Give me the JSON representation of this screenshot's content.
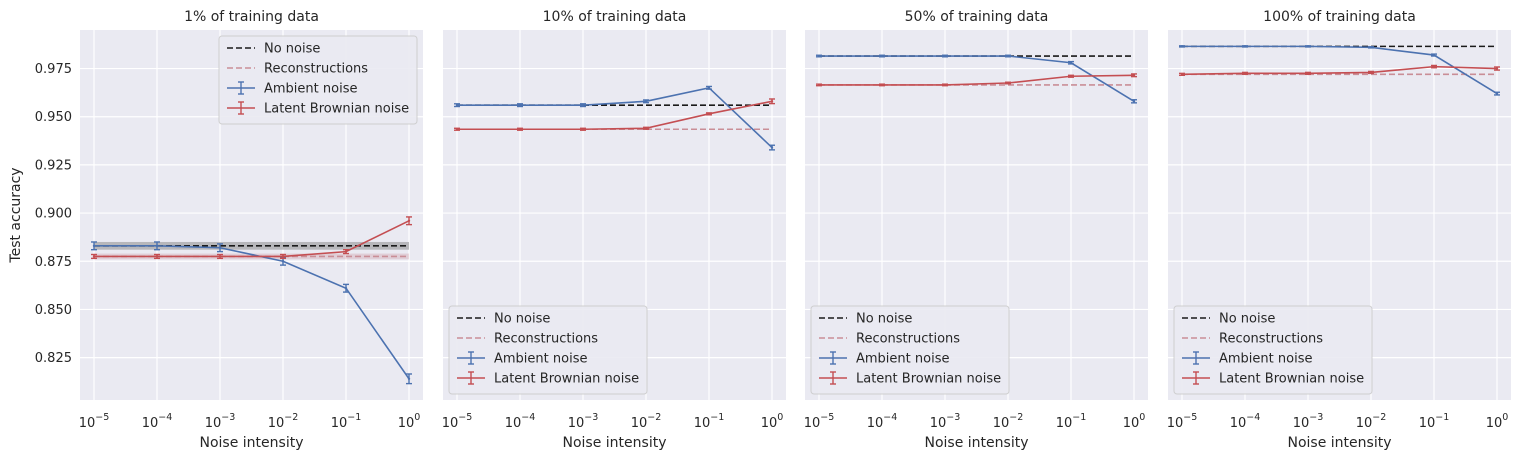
{
  "chart_data": {
    "type": "line",
    "shared_ylabel": "Test accuracy",
    "xlabel": "Noise intensity",
    "x": [
      1e-05,
      0.0001,
      0.001,
      0.01,
      0.1,
      1
    ],
    "x_tick_bases": [
      "10",
      "10",
      "10",
      "10",
      "10",
      "10"
    ],
    "x_tick_exponents": [
      "−5",
      "−4",
      "−3",
      "−2",
      "−1",
      "0"
    ],
    "xscale": "log",
    "ylim": [
      0.803,
      0.995
    ],
    "y_ticks": [
      "0.825",
      "0.850",
      "0.875",
      "0.900",
      "0.925",
      "0.950",
      "0.975"
    ],
    "y_tick_values": [
      0.825,
      0.85,
      0.875,
      0.9,
      0.925,
      0.95,
      0.975
    ],
    "grid": true,
    "legend_labels": [
      "No noise",
      "Reconstructions",
      "Ambient noise",
      "Latent Brownian noise"
    ],
    "colors": {
      "no_noise": "#1a1a1a",
      "reconstructions": "#c98e97",
      "ambient": "#4c72b0",
      "latent": "#c44e52",
      "band": "#a5a5a8",
      "panel_bg": "#eaeaf2",
      "grid": "#ffffff"
    },
    "panels": [
      {
        "title": "1% of training data",
        "legend_position": "top-right",
        "no_noise": 0.883,
        "no_noise_band": [
          0.881,
          0.885
        ],
        "reconstructions": 0.8775,
        "reconstructions_band": [
          0.876,
          0.879
        ],
        "ambient": [
          0.883,
          0.883,
          0.882,
          0.875,
          0.861,
          0.814
        ],
        "ambient_err": [
          0.002,
          0.002,
          0.002,
          0.002,
          0.002,
          0.0025
        ],
        "latent": [
          0.8775,
          0.8775,
          0.8775,
          0.8775,
          0.88,
          0.896
        ],
        "latent_err": [
          0.001,
          0.001,
          0.001,
          0.001,
          0.001,
          0.002
        ]
      },
      {
        "title": "10% of training data",
        "legend_position": "bottom-left",
        "no_noise": 0.956,
        "reconstructions": 0.9435,
        "ambient": [
          0.956,
          0.956,
          0.956,
          0.958,
          0.965,
          0.934
        ],
        "ambient_err": [
          0.0007,
          0.0007,
          0.0007,
          0.0007,
          0.0007,
          0.0012
        ],
        "latent": [
          0.9435,
          0.9435,
          0.9435,
          0.944,
          0.9515,
          0.958
        ],
        "latent_err": [
          0.0005,
          0.0005,
          0.0005,
          0.0005,
          0.0005,
          0.0012
        ]
      },
      {
        "title": "50% of training data",
        "legend_position": "bottom-left",
        "no_noise": 0.9815,
        "reconstructions": 0.9665,
        "ambient": [
          0.9815,
          0.9815,
          0.9815,
          0.9815,
          0.978,
          0.958
        ],
        "ambient_err": [
          0.0004,
          0.0004,
          0.0004,
          0.0004,
          0.0006,
          0.0008
        ],
        "latent": [
          0.9665,
          0.9665,
          0.9665,
          0.9675,
          0.971,
          0.9715
        ],
        "latent_err": [
          0.0004,
          0.0004,
          0.0004,
          0.0004,
          0.0005,
          0.0007
        ]
      },
      {
        "title": "100% of training data",
        "legend_position": "bottom-left",
        "no_noise": 0.9865,
        "reconstructions": 0.972,
        "ambient": [
          0.9865,
          0.9865,
          0.9865,
          0.986,
          0.982,
          0.962
        ],
        "ambient_err": [
          0.0003,
          0.0003,
          0.0003,
          0.0003,
          0.0005,
          0.0007
        ],
        "latent": [
          0.972,
          0.9725,
          0.9725,
          0.973,
          0.976,
          0.975
        ],
        "latent_err": [
          0.0005,
          0.0005,
          0.0005,
          0.0005,
          0.0006,
          0.0008
        ]
      }
    ]
  }
}
